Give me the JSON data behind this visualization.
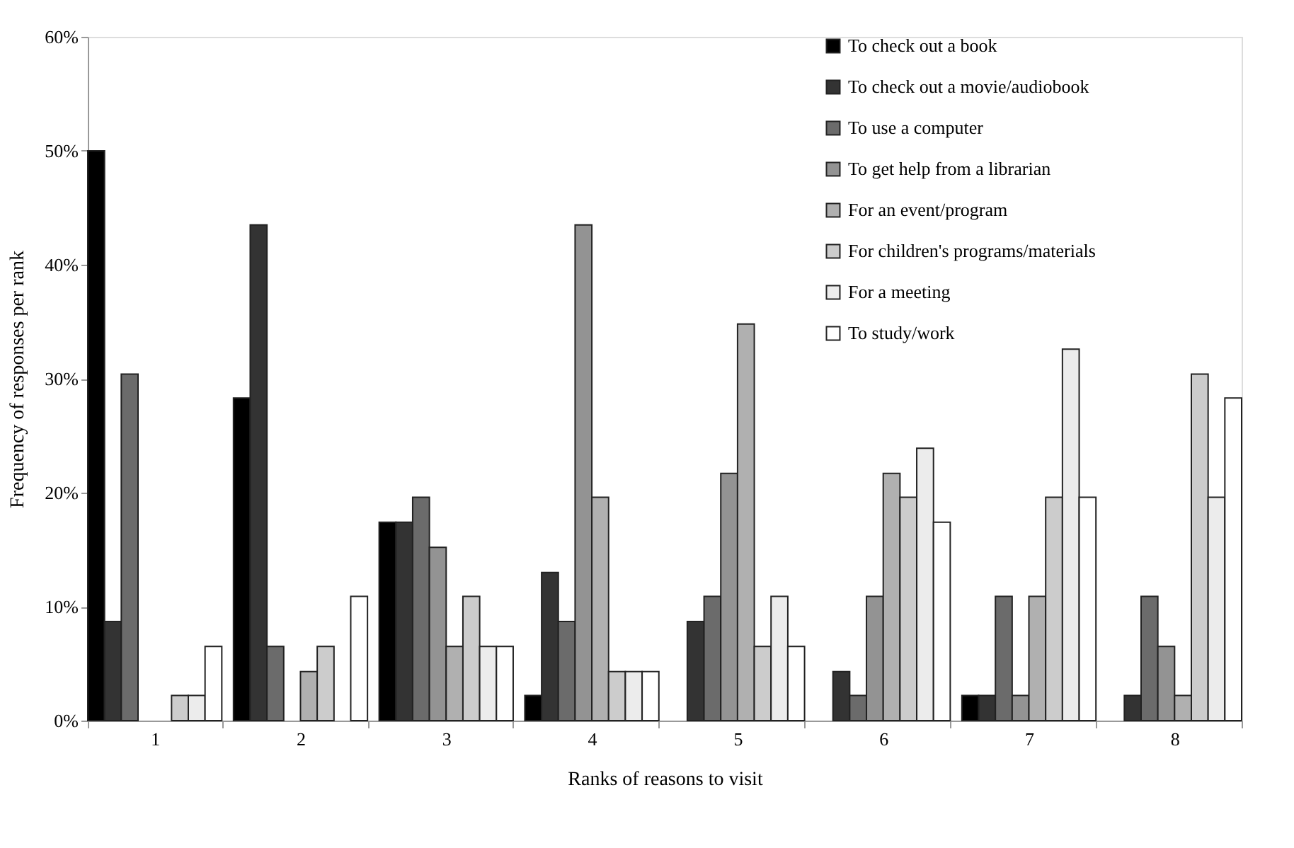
{
  "chart_data": {
    "type": "bar",
    "xlabel": "Ranks of reasons to visit",
    "ylabel": "Frequency of responses per rank",
    "categories": [
      "1",
      "2",
      "3",
      "4",
      "5",
      "6",
      "7",
      "8"
    ],
    "series": [
      {
        "name": "To check out a book",
        "color": "#000000",
        "values": [
          50,
          28.3,
          17.4,
          2.2,
          0,
          0,
          2.2,
          0
        ]
      },
      {
        "name": "To check out a movie/audiobook",
        "color": "#333333",
        "values": [
          8.7,
          43.5,
          17.4,
          13.0,
          8.7,
          4.3,
          2.2,
          2.2
        ]
      },
      {
        "name": "To use a computer",
        "color": "#6b6b6b",
        "values": [
          30.4,
          6.5,
          19.6,
          8.7,
          10.9,
          2.2,
          10.9,
          10.9
        ]
      },
      {
        "name": "To get help from a librarian",
        "color": "#939393",
        "values": [
          0,
          0,
          15.2,
          43.5,
          21.7,
          10.9,
          2.2,
          6.5
        ]
      },
      {
        "name": "For an event/program",
        "color": "#b0b0b0",
        "values": [
          0,
          4.3,
          6.5,
          19.6,
          34.8,
          21.7,
          10.9,
          2.2
        ]
      },
      {
        "name": "For children's programs/materials",
        "color": "#cccccc",
        "values": [
          2.2,
          6.5,
          10.9,
          4.3,
          6.5,
          19.6,
          19.6,
          30.4
        ]
      },
      {
        "name": "For a meeting",
        "color": "#ececec",
        "values": [
          2.2,
          0,
          6.5,
          4.3,
          10.9,
          23.9,
          32.6,
          19.6
        ]
      },
      {
        "name": "To study/work",
        "color": "#ffffff",
        "values": [
          6.5,
          10.9,
          6.5,
          4.3,
          6.5,
          17.4,
          19.6,
          28.3
        ]
      }
    ],
    "ylim": [
      0,
      60
    ],
    "yticks": [
      {
        "value": 0,
        "label": "0%"
      },
      {
        "value": 10,
        "label": "10%"
      },
      {
        "value": 20,
        "label": "20%"
      },
      {
        "value": 30,
        "label": "30%"
      },
      {
        "value": 40,
        "label": "40%"
      },
      {
        "value": 50,
        "label": "50%"
      },
      {
        "value": 60,
        "label": "60%"
      }
    ],
    "grid": false,
    "legend": "top right"
  }
}
